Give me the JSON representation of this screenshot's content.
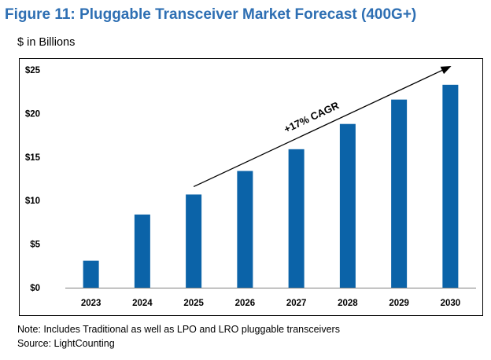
{
  "title": "Figure 11: Pluggable Transceiver Market Forecast (400G+)",
  "subtitle": "$ in Billions",
  "note": "Note: Includes Traditional as well as LPO and LRO pluggable transceivers",
  "source": "Source: LightCounting",
  "colors": {
    "title": "#2e6fb3",
    "bar": "#0b63a8",
    "text": "#000000"
  },
  "chart_data": {
    "type": "bar",
    "categories": [
      "2023",
      "2024",
      "2025",
      "2026",
      "2027",
      "2028",
      "2029",
      "2030"
    ],
    "values": [
      3.1,
      8.4,
      10.7,
      13.4,
      15.9,
      18.8,
      21.6,
      23.3
    ],
    "ylim": [
      0,
      25
    ],
    "yticks": [
      0,
      5,
      10,
      15,
      20,
      25
    ],
    "ytick_labels": [
      "$0",
      "$5",
      "$10",
      "$15",
      "$20",
      "$25"
    ],
    "grid": false,
    "annotation": {
      "text": "+17% CAGR",
      "from": {
        "x": "2025",
        "y": 11.6
      },
      "to": {
        "x": "2030",
        "y": 25.4
      }
    }
  }
}
